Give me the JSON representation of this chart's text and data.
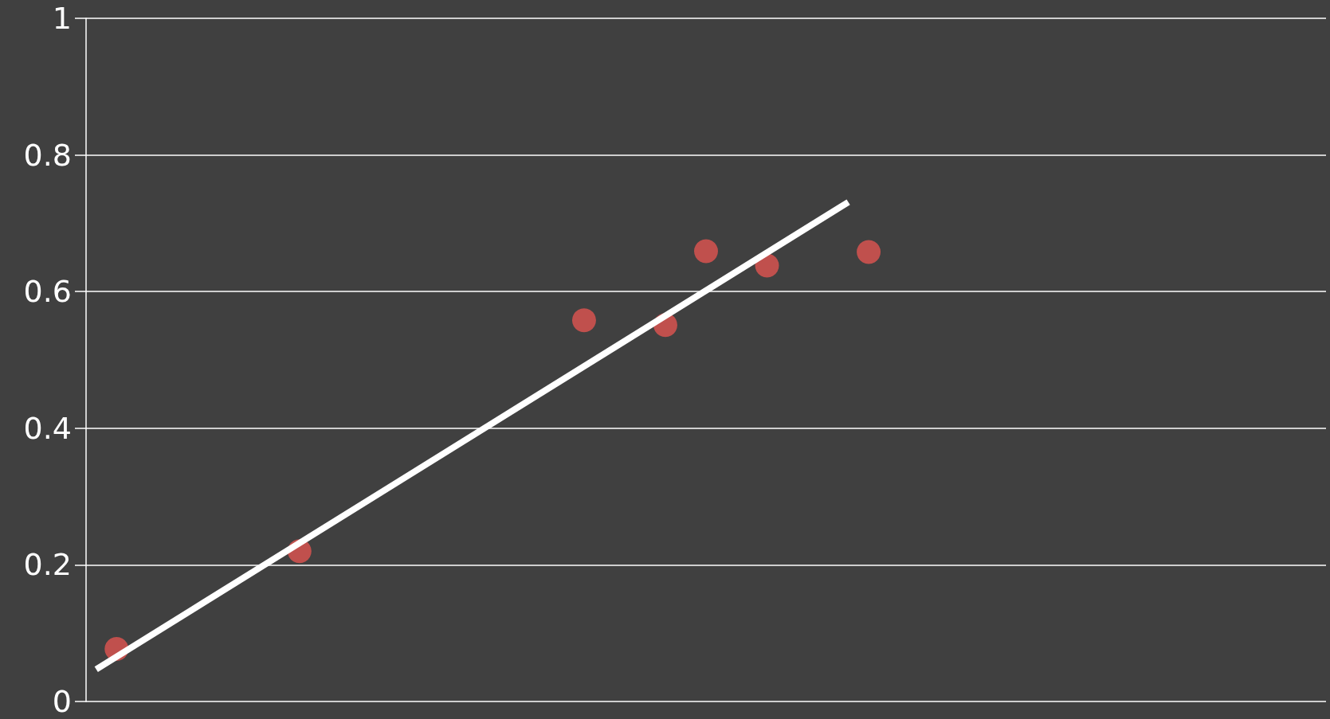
{
  "chart_data": {
    "type": "scatter",
    "categories": [
      null,
      null,
      null,
      null,
      null,
      null,
      null,
      null,
      null,
      null,
      null,
      null,
      null,
      null,
      null,
      null,
      null,
      null,
      null,
      null,
      null,
      null,
      null,
      null,
      null,
      null,
      null,
      null,
      null,
      null,
      null,
      null,
      null,
      null,
      null,
      null,
      null,
      null,
      null,
      null,
      null,
      null,
      null,
      null,
      null,
      null,
      null,
      null,
      null,
      null,
      null,
      null,
      null,
      null,
      null,
      null,
      null,
      null,
      null,
      null,
      null
    ],
    "ylim": [
      0,
      1
    ],
    "yticks": [
      0,
      0.2,
      0.4,
      0.6,
      0.8,
      1
    ],
    "grid": "y",
    "tick_labels": "y",
    "marker": "circle",
    "series": [
      {
        "color": "#c0504d",
        "values": [
          null,
          0.077,
          null,
          null,
          null,
          null,
          null,
          null,
          null,
          null,
          0.22,
          null,
          null,
          null,
          null,
          null,
          null,
          null,
          null,
          null,
          null,
          null,
          null,
          null,
          0.558,
          null,
          null,
          null,
          0.551,
          null,
          0.659,
          null,
          null,
          0.638,
          null,
          null,
          null,
          null,
          0.658,
          null,
          null,
          null,
          null,
          null,
          null,
          null,
          null,
          null,
          null,
          null,
          null,
          null,
          null,
          null,
          null,
          null,
          null,
          null,
          null,
          null,
          null
        ]
      },
      {
        "type": "line",
        "color": "#ffffff",
        "line_style": "solid",
        "marker": "none",
        "values": [
          0.047,
          null,
          null,
          null,
          null,
          null,
          null,
          null,
          null,
          null,
          null,
          null,
          null,
          null,
          null,
          null,
          null,
          null,
          null,
          null,
          null,
          null,
          null,
          null,
          null,
          null,
          null,
          null,
          null,
          null,
          null,
          null,
          null,
          null,
          null,
          null,
          null,
          0.731,
          null,
          null,
          null,
          null,
          null,
          null,
          null,
          null,
          null,
          null,
          null,
          null,
          null,
          null,
          null,
          null,
          null,
          null,
          null,
          null,
          null,
          null,
          null
        ]
      }
    ]
  }
}
